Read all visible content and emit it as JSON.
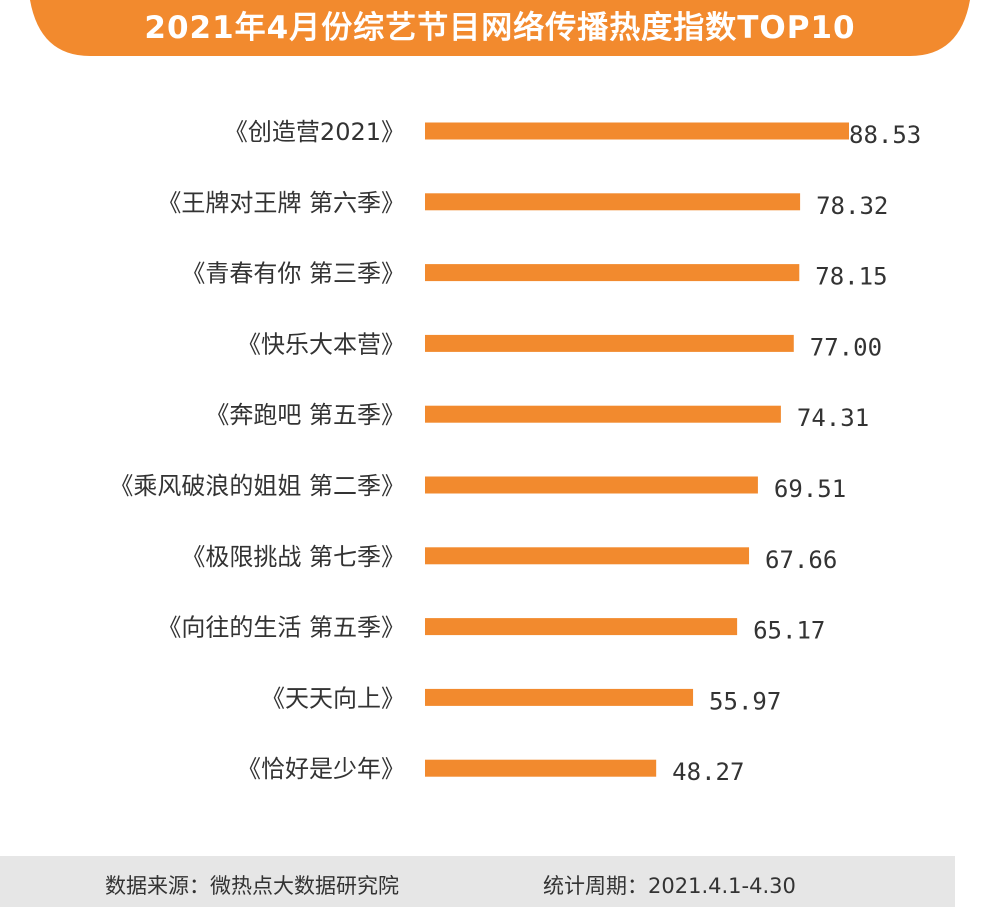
{
  "title": "2021年4月份综艺节目网络传播热度指数TOP10",
  "colors": {
    "bar": "#f28a2e",
    "banner": "#f28a2e",
    "text": "#333333",
    "footer_bg": "#e6e6e6"
  },
  "footer": {
    "source": "数据来源：微热点大数据研究院",
    "period": "统计周期：2021.4.1-4.30"
  },
  "chart_data": {
    "type": "bar",
    "orientation": "horizontal",
    "title": "2021年4月份综艺节目网络传播热度指数TOP10",
    "categories": [
      "《创造营2021》",
      "《王牌对王牌 第六季》",
      "《青春有你 第三季》",
      "《快乐大本营》",
      "《奔跑吧 第五季》",
      "《乘风破浪的姐姐 第二季》",
      "《极限挑战 第七季》",
      "《向往的生活 第五季》",
      "《天天向上》",
      "《恰好是少年》"
    ],
    "values": [
      88.53,
      78.32,
      78.15,
      77.0,
      74.31,
      69.51,
      67.66,
      65.17,
      55.97,
      48.27
    ],
    "value_labels": [
      "88.53",
      "78.32",
      "78.15",
      "77.00",
      "74.31",
      "69.51",
      "67.66",
      "65.17",
      "55.97",
      "48.27"
    ],
    "xlim": [
      0,
      100
    ],
    "grid": false,
    "xlabel": "",
    "ylabel": ""
  }
}
